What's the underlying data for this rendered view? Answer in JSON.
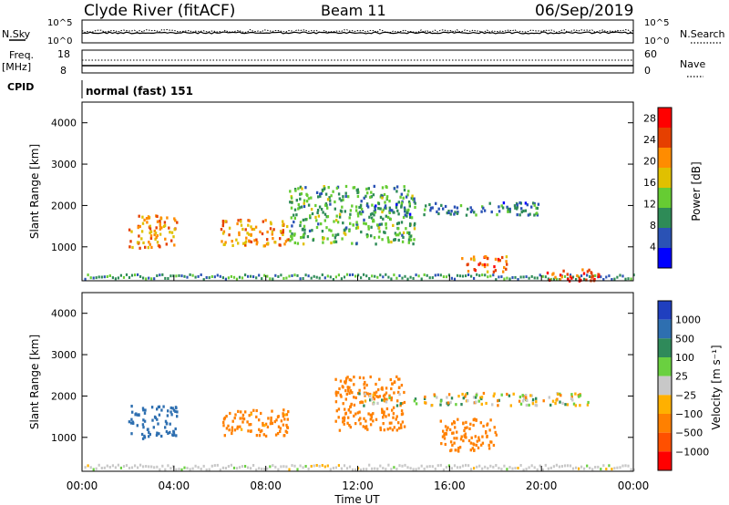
{
  "header": {
    "station": "Clyde River (fitACF)",
    "beam": "Beam 11",
    "date": "06/Sep/2019"
  },
  "panels": {
    "noise": {
      "left_label": "N.Sky",
      "right_label": "N.Search",
      "left_ticks": [
        "10^5",
        "10^0"
      ],
      "right_ticks": [
        "10^5",
        "10^0"
      ]
    },
    "freq": {
      "left_label": "Freq.",
      "left_units": "[MHz]",
      "right_label": "Nave",
      "left_ticks": [
        "18",
        "8"
      ],
      "right_ticks": [
        "60",
        "0"
      ]
    },
    "cpid": {
      "label": "CPID",
      "value": "normal (fast) 151"
    }
  },
  "colors": {
    "power": [
      "#0000ff",
      "#2a52b5",
      "#2e8b57",
      "#66cc33",
      "#e0c000",
      "#ff8c00",
      "#e64000",
      "#ff0000"
    ],
    "velocity": [
      "#1f3fbf",
      "#2e6fb0",
      "#2f8a5a",
      "#6ad040",
      "#c8c8c8",
      "#ffb000",
      "#ff8000",
      "#ff5000",
      "#ff0000"
    ]
  },
  "chart_data": [
    {
      "type": "heatmap",
      "title": "Power",
      "ylabel": "Slant Range [km]",
      "xlabel": "Time UT",
      "ylim": [
        180,
        4500
      ],
      "yticks": [
        "1000",
        "2000",
        "3000",
        "4000"
      ],
      "xticks": [
        "00:00",
        "04:00",
        "08:00",
        "12:00",
        "16:00",
        "20:00",
        "00:00"
      ],
      "colorbar": {
        "label": "Power [dB]",
        "ticks": [
          "4",
          "8",
          "12",
          "16",
          "20",
          "24",
          "28"
        ],
        "range": [
          0,
          30
        ]
      },
      "scatter_regions": [
        {
          "t": [
            2.0,
            4.1
          ],
          "r": [
            1000,
            1800
          ],
          "value": 22
        },
        {
          "t": [
            6.0,
            9.0
          ],
          "r": [
            1050,
            1700
          ],
          "value": 22
        },
        {
          "t": [
            9.0,
            14.5
          ],
          "r": [
            1100,
            2500
          ],
          "value": 12
        },
        {
          "t": [
            16.5,
            18.5
          ],
          "r": [
            400,
            800
          ],
          "value": 24
        },
        {
          "t": [
            20.0,
            22.5
          ],
          "r": [
            200,
            500
          ],
          "value": 26
        },
        {
          "t": [
            12.0,
            20.0
          ],
          "r": [
            1800,
            2100
          ],
          "value": 8
        }
      ]
    },
    {
      "type": "heatmap",
      "title": "Velocity",
      "ylabel": "Slant Range [km]",
      "xlabel": "Time UT",
      "ylim": [
        180,
        4500
      ],
      "yticks": [
        "1000",
        "2000",
        "3000",
        "4000"
      ],
      "xticks": [
        "00:00",
        "04:00",
        "08:00",
        "12:00",
        "16:00",
        "20:00",
        "00:00"
      ],
      "colorbar": {
        "label": "Velocity [m s⁻¹]",
        "ticks": [
          "1000",
          "500",
          "100",
          "25",
          "−25",
          "−100",
          "−500",
          "−1000"
        ]
      },
      "scatter_regions": [
        {
          "t": [
            2.0,
            4.1
          ],
          "r": [
            1000,
            1800
          ],
          "value": 500
        },
        {
          "t": [
            6.0,
            9.0
          ],
          "r": [
            1050,
            1700
          ],
          "value": -150
        },
        {
          "t": [
            11.0,
            14.0
          ],
          "r": [
            1200,
            2500
          ],
          "value": -200
        },
        {
          "t": [
            15.5,
            18.0
          ],
          "r": [
            700,
            1500
          ],
          "value": -200
        },
        {
          "t": [
            12.0,
            22.0
          ],
          "r": [
            1800,
            2100
          ],
          "value": 0
        }
      ]
    }
  ]
}
